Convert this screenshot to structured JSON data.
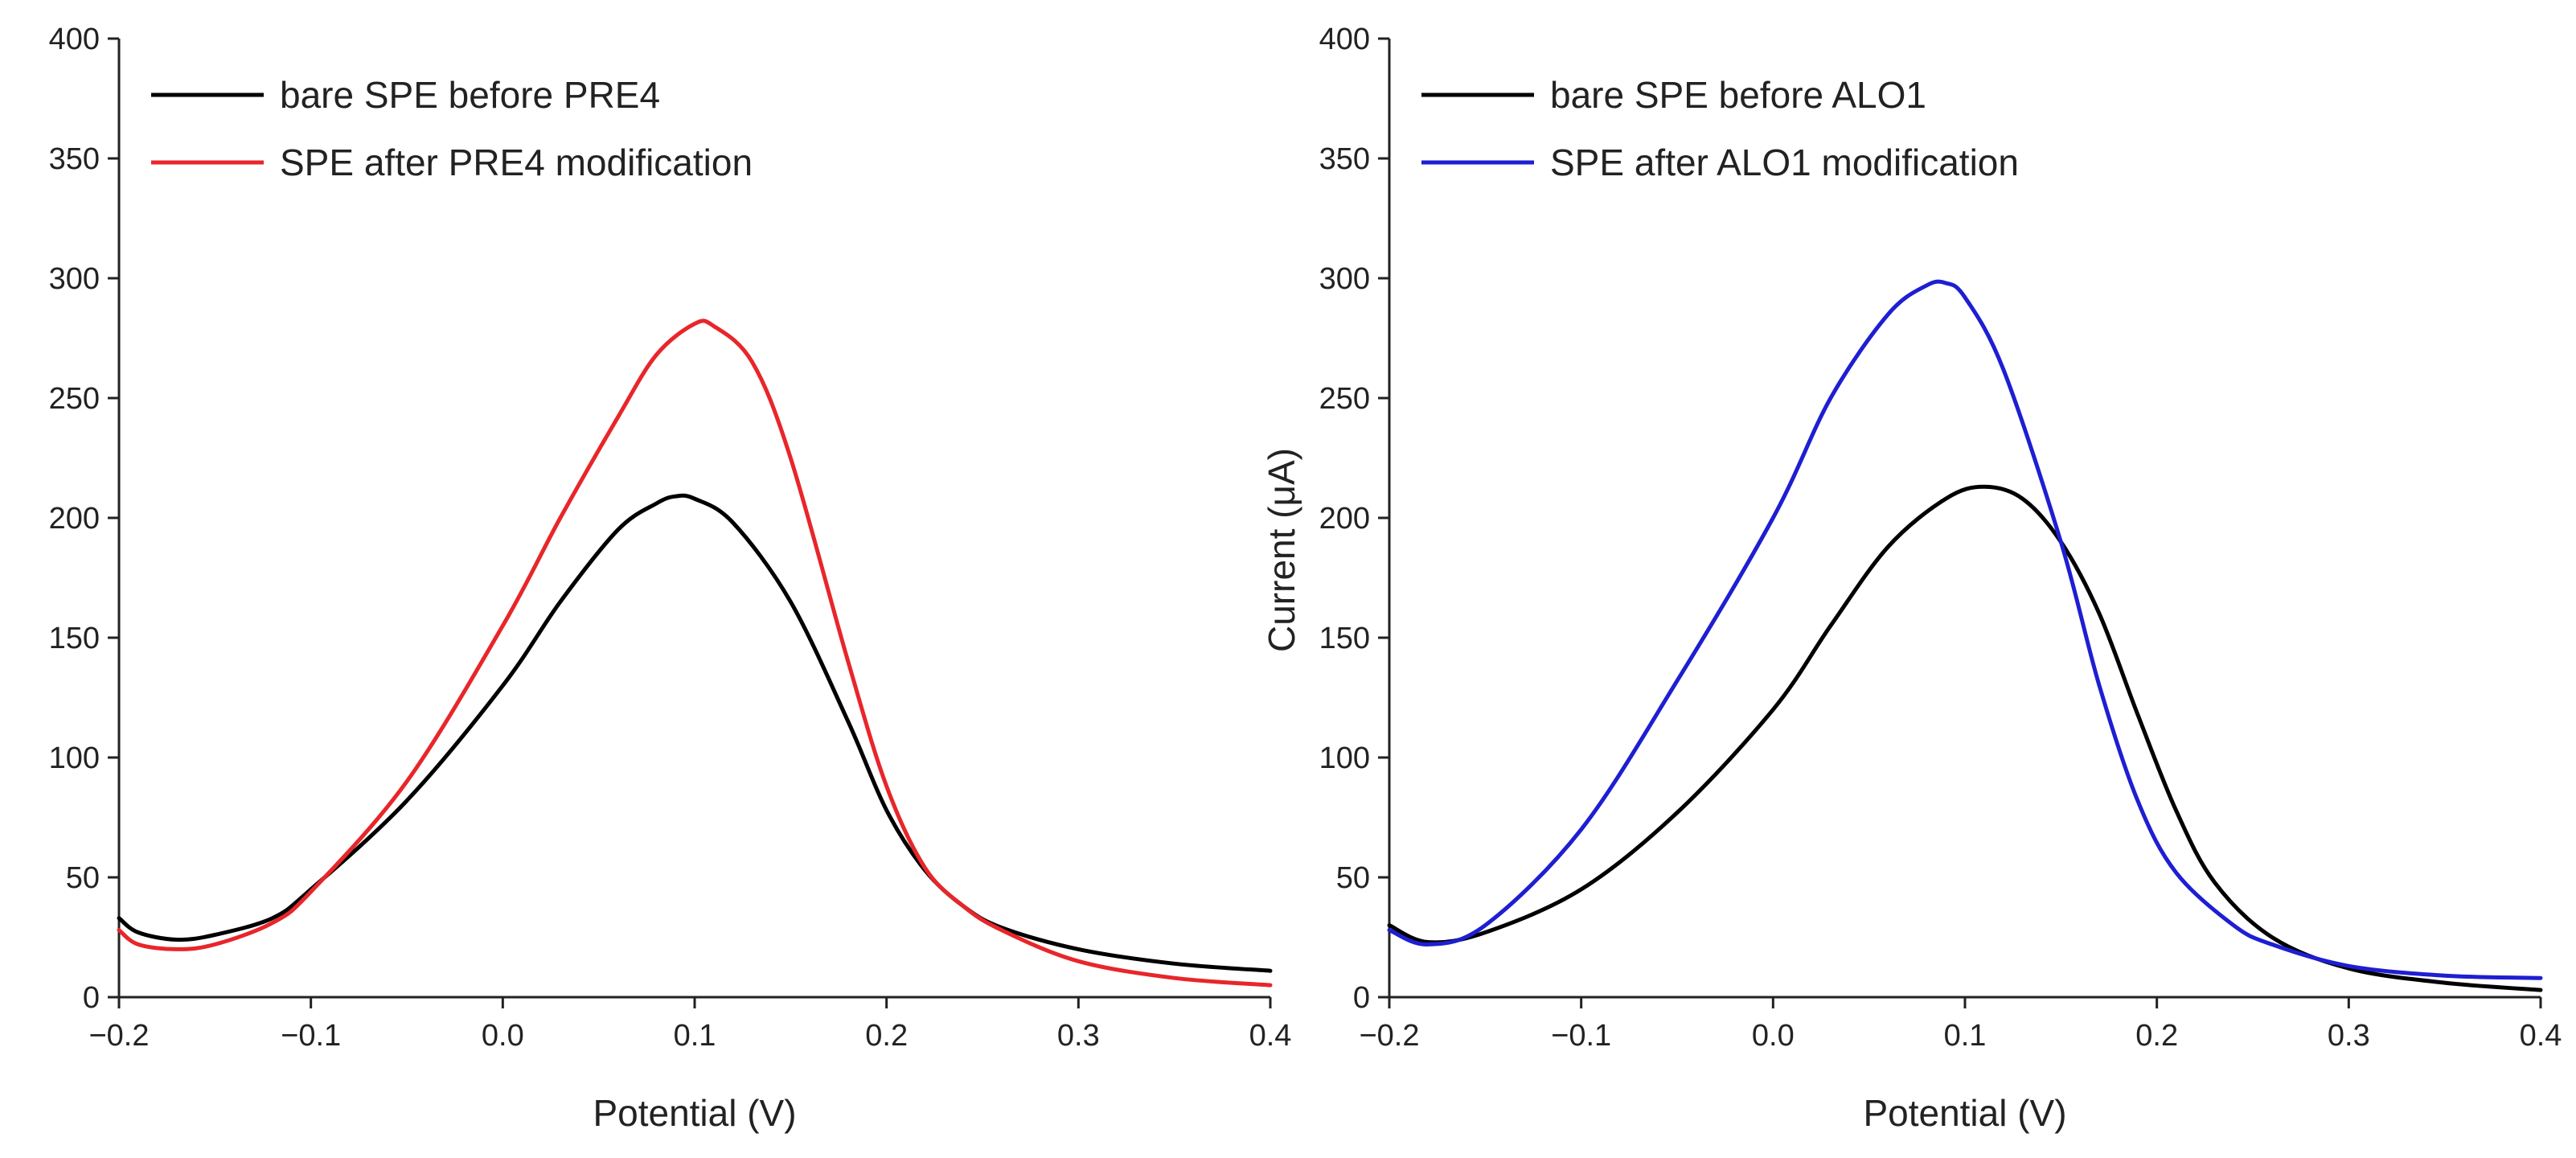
{
  "chart_data": [
    {
      "type": "line",
      "xlabel": "Potential (V)",
      "ylabel": "",
      "xlim": [
        -0.2,
        0.4
      ],
      "ylim": [
        0,
        400
      ],
      "xticks": [
        -0.2,
        -0.1,
        0.0,
        0.1,
        0.2,
        0.3,
        0.4
      ],
      "xtick_labels": [
        "−0.2",
        "−0.1",
        "0.0",
        "0.1",
        "0.2",
        "0.3",
        "0.4"
      ],
      "yticks": [
        0,
        50,
        100,
        150,
        200,
        250,
        300,
        350,
        400
      ],
      "ytick_labels": [
        "0",
        "50",
        "100",
        "150",
        "200",
        "250",
        "300",
        "350",
        "400"
      ],
      "legend_position": "top-left",
      "grid": false,
      "series": [
        {
          "name": "bare SPE before PRE4",
          "color": "#000000",
          "points": [
            [
              -0.2,
              33
            ],
            [
              -0.19,
              27
            ],
            [
              -0.17,
              24
            ],
            [
              -0.15,
              26
            ],
            [
              -0.12,
              33
            ],
            [
              -0.1,
              45
            ],
            [
              -0.05,
              82
            ],
            [
              0.0,
              130
            ],
            [
              0.03,
              165
            ],
            [
              0.06,
              195
            ],
            [
              0.08,
              206
            ],
            [
              0.09,
              209
            ],
            [
              0.1,
              208
            ],
            [
              0.12,
              198
            ],
            [
              0.15,
              165
            ],
            [
              0.18,
              115
            ],
            [
              0.2,
              78
            ],
            [
              0.22,
              53
            ],
            [
              0.24,
              38
            ],
            [
              0.26,
              29
            ],
            [
              0.3,
              20
            ],
            [
              0.35,
              14
            ],
            [
              0.4,
              11
            ]
          ]
        },
        {
          "name": "SPE after PRE4 modification",
          "color": "#e8262a",
          "points": [
            [
              -0.2,
              28
            ],
            [
              -0.19,
              22
            ],
            [
              -0.17,
              20
            ],
            [
              -0.15,
              22
            ],
            [
              -0.12,
              31
            ],
            [
              -0.1,
              44
            ],
            [
              -0.05,
              90
            ],
            [
              0.0,
              155
            ],
            [
              0.03,
              200
            ],
            [
              0.06,
              242
            ],
            [
              0.08,
              268
            ],
            [
              0.1,
              281
            ],
            [
              0.11,
              280
            ],
            [
              0.13,
              265
            ],
            [
              0.15,
              225
            ],
            [
              0.18,
              140
            ],
            [
              0.2,
              88
            ],
            [
              0.22,
              54
            ],
            [
              0.24,
              38
            ],
            [
              0.26,
              28
            ],
            [
              0.3,
              15
            ],
            [
              0.35,
              8
            ],
            [
              0.4,
              5
            ]
          ]
        }
      ]
    },
    {
      "type": "line",
      "xlabel": "Potential (V)",
      "ylabel": "Current (μA)",
      "xlim": [
        -0.2,
        0.4
      ],
      "ylim": [
        0,
        400
      ],
      "xticks": [
        -0.2,
        -0.1,
        0.0,
        0.1,
        0.2,
        0.3,
        0.4
      ],
      "xtick_labels": [
        "−0.2",
        "−0.1",
        "0.0",
        "0.1",
        "0.2",
        "0.3",
        "0.4"
      ],
      "yticks": [
        0,
        50,
        100,
        150,
        200,
        250,
        300,
        350,
        400
      ],
      "ytick_labels": [
        "0",
        "50",
        "100",
        "150",
        "200",
        "250",
        "300",
        "350",
        "400"
      ],
      "legend_position": "top-left",
      "grid": false,
      "series": [
        {
          "name": "bare SPE before ALO1",
          "color": "#000000",
          "points": [
            [
              -0.2,
              30
            ],
            [
              -0.18,
              23
            ],
            [
              -0.15,
              27
            ],
            [
              -0.1,
              45
            ],
            [
              -0.05,
              77
            ],
            [
              0.0,
              120
            ],
            [
              0.03,
              155
            ],
            [
              0.06,
              188
            ],
            [
              0.09,
              208
            ],
            [
              0.11,
              213
            ],
            [
              0.13,
              208
            ],
            [
              0.15,
              190
            ],
            [
              0.17,
              160
            ],
            [
              0.19,
              118
            ],
            [
              0.21,
              78
            ],
            [
              0.23,
              48
            ],
            [
              0.26,
              25
            ],
            [
              0.3,
              12
            ],
            [
              0.35,
              6
            ],
            [
              0.4,
              3
            ]
          ]
        },
        {
          "name": "SPE after ALO1 modification",
          "color": "#1e1ed2",
          "points": [
            [
              -0.2,
              28
            ],
            [
              -0.18,
              22
            ],
            [
              -0.15,
              30
            ],
            [
              -0.1,
              70
            ],
            [
              -0.05,
              132
            ],
            [
              0.0,
              200
            ],
            [
              0.03,
              250
            ],
            [
              0.06,
              285
            ],
            [
              0.08,
              297
            ],
            [
              0.09,
              298
            ],
            [
              0.1,
              292
            ],
            [
              0.12,
              262
            ],
            [
              0.15,
              190
            ],
            [
              0.17,
              130
            ],
            [
              0.19,
              82
            ],
            [
              0.21,
              52
            ],
            [
              0.24,
              30
            ],
            [
              0.26,
              22
            ],
            [
              0.3,
              13
            ],
            [
              0.35,
              9
            ],
            [
              0.4,
              8
            ]
          ]
        }
      ]
    }
  ]
}
